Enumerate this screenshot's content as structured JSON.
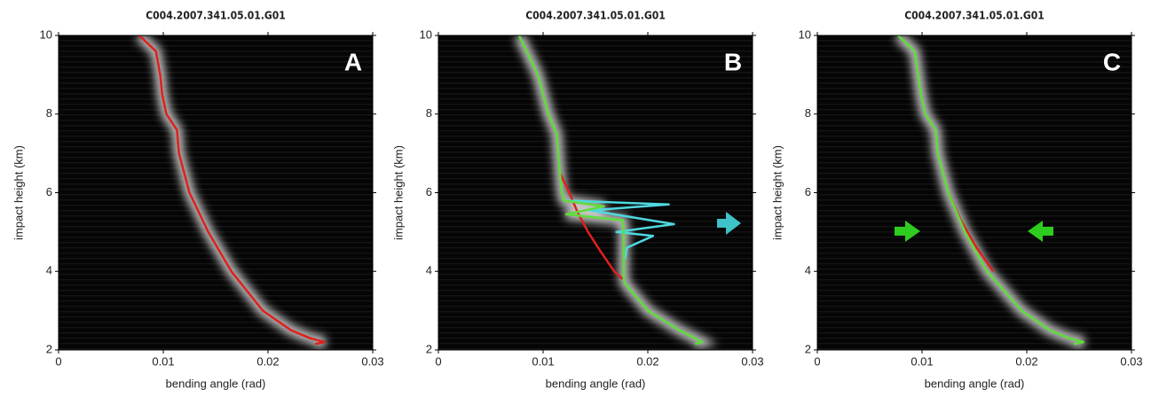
{
  "chart_data": [
    {
      "type": "line",
      "title": "C004.2007.341.05.01.G01",
      "panel_label": "A",
      "x_label": "bending angle (rad)",
      "y_label": "impact height (km)",
      "xlim": [
        0,
        0.03
      ],
      "ylim": [
        2,
        10
      ],
      "xticks": [
        0,
        0.01,
        0.02,
        0.03
      ],
      "yticks": [
        2,
        4,
        6,
        8,
        10
      ],
      "series": [
        {
          "color": "#e0201c",
          "x": [
            0.0077,
            0.0093,
            0.0097,
            0.0099,
            0.0103,
            0.0113,
            0.0115,
            0.0125,
            0.0143,
            0.0165,
            0.0195,
            0.0222,
            0.024,
            0.0254,
            0.0245
          ],
          "values": [
            10,
            9.6,
            9,
            8.5,
            8,
            7.6,
            7,
            6,
            5,
            4,
            3,
            2.5,
            2.3,
            2.2,
            2.15
          ]
        }
      ]
    },
    {
      "type": "line",
      "title": "C004.2007.341.05.01.G01",
      "panel_label": "B",
      "x_label": "bending angle (rad)",
      "y_label": "impact height (km)",
      "xlim": [
        0,
        0.03
      ],
      "ylim": [
        2,
        10
      ],
      "xticks": [
        0,
        0.01,
        0.02,
        0.03
      ],
      "yticks": [
        2,
        4,
        6,
        8,
        10
      ],
      "series": [
        {
          "color": "#e0201c",
          "x": [
            0.0116,
            0.0125,
            0.0133,
            0.0143,
            0.0155,
            0.0168,
            0.0176
          ],
          "values": [
            6.5,
            6,
            5.5,
            5,
            4.5,
            4,
            3.8
          ]
        },
        {
          "color": "#4fd8e0",
          "x": [
            0.012,
            0.022,
            0.0145,
            0.0225,
            0.017,
            0.0205,
            0.018,
            0.0178
          ],
          "values": [
            5.8,
            5.7,
            5.55,
            5.2,
            5.0,
            4.9,
            4.6,
            4.3
          ]
        },
        {
          "color": "#5fdd3a",
          "x": [
            0.0077,
            0.0095,
            0.0105,
            0.0113,
            0.0116,
            0.0118,
            0.012,
            0.0158,
            0.0122,
            0.0176,
            0.0177,
            0.0177,
            0.0178,
            0.02,
            0.023,
            0.0252,
            0.0245
          ],
          "values": [
            10,
            9,
            8,
            7.5,
            6.5,
            6,
            5.8,
            5.65,
            5.45,
            5.3,
            5.0,
            3.8,
            3.7,
            3,
            2.5,
            2.2,
            2.15
          ]
        }
      ]
    },
    {
      "type": "line",
      "title": "C004.2007.341.05.01.G01",
      "panel_label": "C",
      "x_label": "bending angle (rad)",
      "y_label": "impact height (km)",
      "xlim": [
        0,
        0.03
      ],
      "ylim": [
        2,
        10
      ],
      "xticks": [
        0,
        0.01,
        0.02,
        0.03
      ],
      "yticks": [
        2,
        4,
        6,
        8,
        10
      ],
      "series": [
        {
          "color": "#e0201c",
          "x": [
            0.0125,
            0.0137,
            0.0152,
            0.0168
          ],
          "values": [
            6,
            5.3,
            4.6,
            4
          ]
        },
        {
          "color": "#5fdd3a",
          "x": [
            0.0077,
            0.0093,
            0.0099,
            0.0103,
            0.0113,
            0.0115,
            0.0125,
            0.0141,
            0.0162,
            0.0195,
            0.0222,
            0.024,
            0.0254,
            0.0245
          ],
          "values": [
            10,
            9.6,
            8.5,
            8,
            7.6,
            7,
            6,
            5,
            4,
            3,
            2.5,
            2.3,
            2.2,
            2.15
          ]
        }
      ]
    }
  ]
}
